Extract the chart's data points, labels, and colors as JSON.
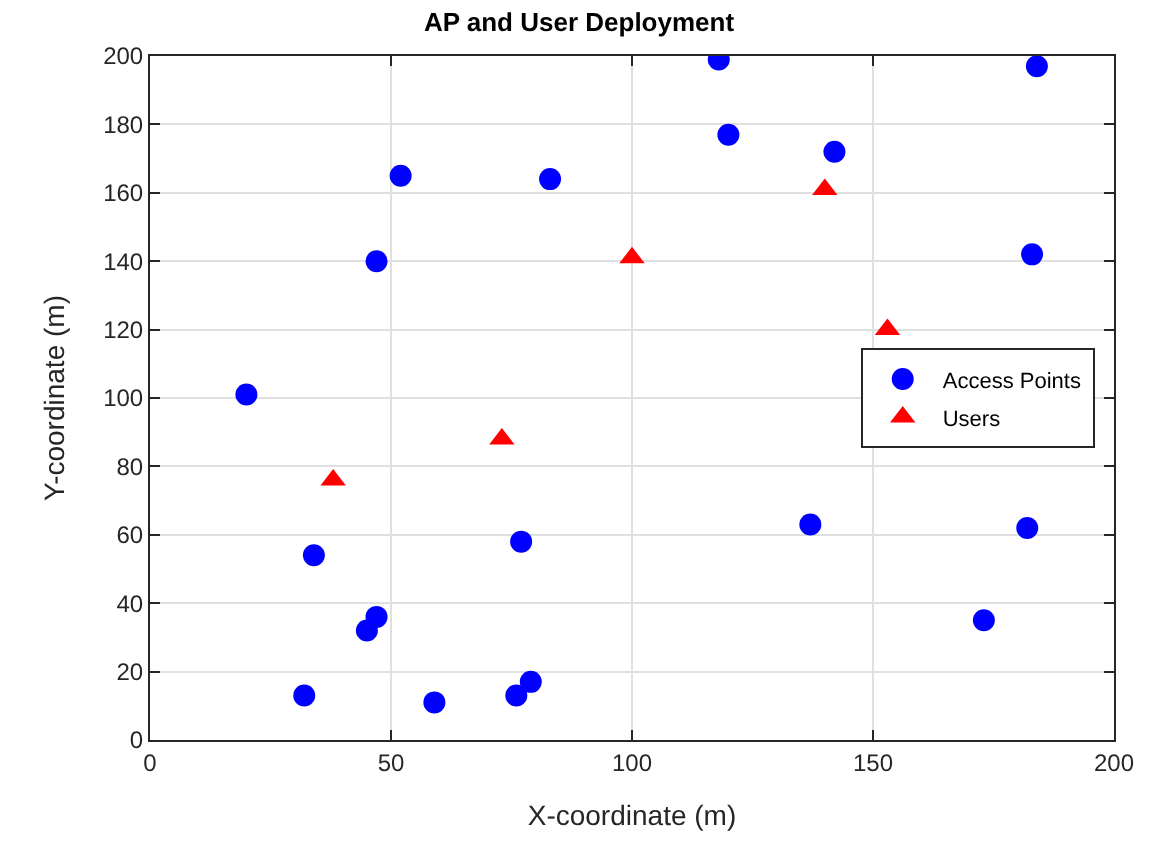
{
  "chart_data": {
    "type": "scatter",
    "title": "AP and User Deployment",
    "xlabel": "X-coordinate (m)",
    "ylabel": "Y-coordinate (m)",
    "xlim": [
      0,
      200
    ],
    "xticks": [
      0,
      50,
      100,
      150,
      200
    ],
    "ylim": [
      0,
      200
    ],
    "yticks": [
      0,
      20,
      40,
      60,
      80,
      100,
      120,
      140,
      160,
      180,
      200
    ],
    "grid": true,
    "legend": "right",
    "series": [
      {
        "name": "Access Points",
        "color": "#0000ff",
        "marker": "circle",
        "x": [
          118,
          184,
          120,
          142,
          52,
          83,
          47,
          183,
          20,
          34,
          77,
          182,
          137,
          173,
          47,
          45,
          32,
          59,
          79,
          76
        ],
        "values": [
          199,
          197,
          177,
          172,
          165,
          164,
          140,
          142,
          101,
          54,
          58,
          62,
          63,
          35,
          36,
          32,
          13,
          11,
          17,
          13
        ]
      },
      {
        "name": "Users",
        "color": "#ff0000",
        "marker": "triangle",
        "x": [
          38,
          73,
          100,
          140,
          153
        ],
        "values": [
          76,
          88,
          141,
          161,
          120
        ]
      }
    ]
  }
}
